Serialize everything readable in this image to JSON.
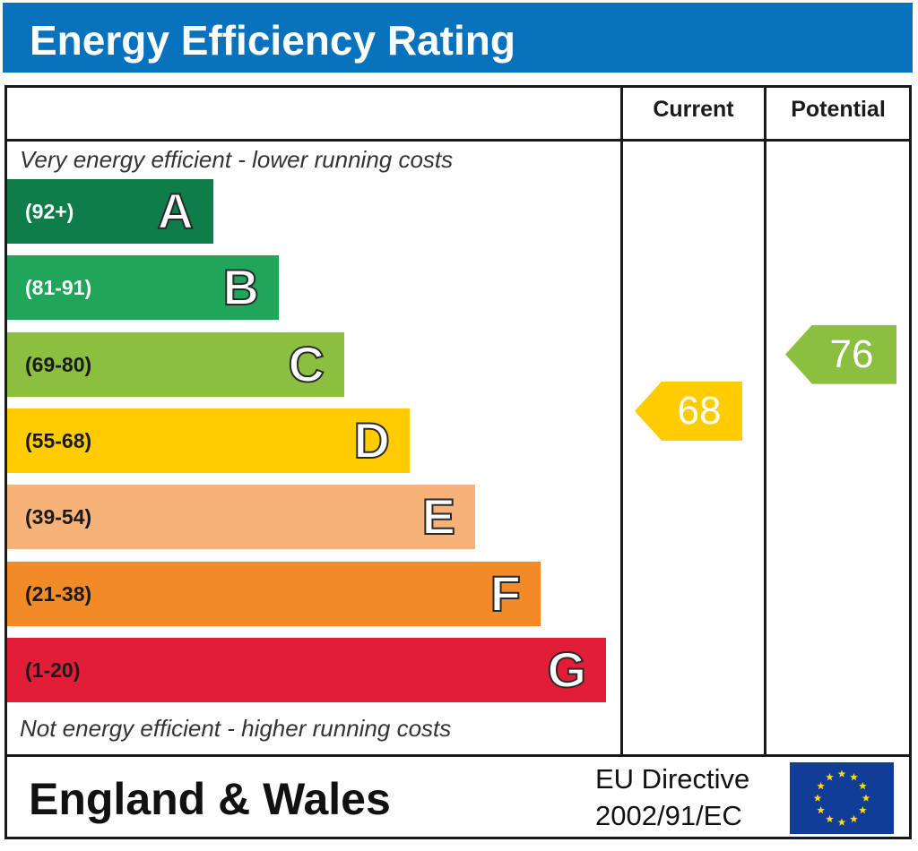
{
  "title": "Energy Efficiency Rating",
  "columns": {
    "current": "Current",
    "potential": "Potential"
  },
  "top_caption": "Very energy efficient - lower running costs",
  "bottom_caption": "Not energy efficient - higher running costs",
  "footer": {
    "region": "England & Wales",
    "directive_line1": "EU Directive",
    "directive_line2": "2002/91/EC"
  },
  "chart_data": {
    "type": "bar",
    "categories": [
      "A",
      "B",
      "C",
      "D",
      "E",
      "F",
      "G"
    ],
    "ranges": [
      "(92+)",
      "(81-91)",
      "(69-80)",
      "(55-68)",
      "(39-54)",
      "(21-38)",
      "(1-20)"
    ],
    "colors": [
      "#0f7d4a",
      "#20a55a",
      "#8cbf3f",
      "#ffcc00",
      "#f7b27a",
      "#f28a25",
      "#e21d38"
    ],
    "range_text_colors": [
      "#ffffff",
      "#ffffff",
      "#1a1a1a",
      "#1a1a1a",
      "#1a1a1a",
      "#1a1a1a",
      "#1a1a1a"
    ],
    "current": {
      "value": 68,
      "band": "D",
      "color": "#ffcc00"
    },
    "potential": {
      "value": 76,
      "band": "C",
      "color": "#8cbf3f"
    }
  }
}
